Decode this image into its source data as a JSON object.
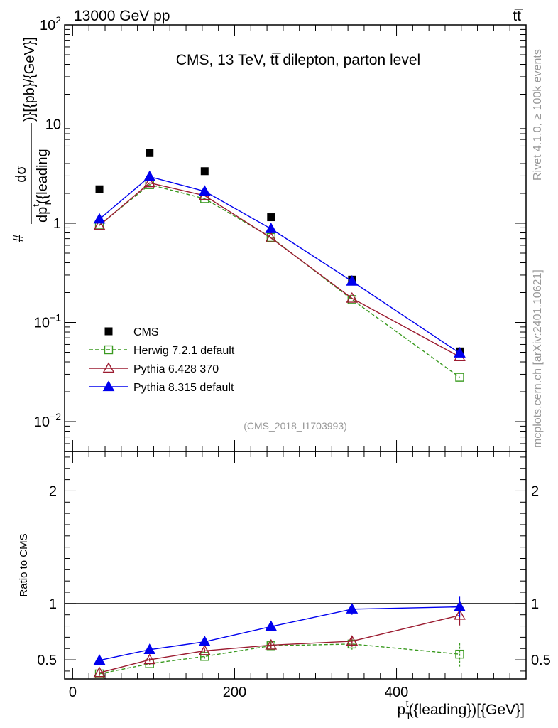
{
  "chart_data": [
    {
      "panel": "main",
      "type": "scatter",
      "yscale": "log",
      "title": "CMS, 13 TeV, tt̅ dilepton, parton level",
      "top_left_label": "13000 GeV pp",
      "top_right_label": "tt̅",
      "ylabel": {
        "hash": "#",
        "numerator": "dσ",
        "denominator": "dp",
        "sub": "T",
        "sup": "t",
        "denominator_rest": "({leading",
        "trailing": ")}[{pb}/{GeV}]"
      },
      "xlim": [
        -10,
        560
      ],
      "ylim": [
        0.005,
        100
      ],
      "yticks": [
        {
          "value": 100,
          "base": "10",
          "exp": "2"
        },
        {
          "value": 10,
          "base": "10",
          "exp": ""
        },
        {
          "value": 1,
          "base": "1",
          "exp": ""
        },
        {
          "value": 0.1,
          "base": "10",
          "exp": "−1"
        },
        {
          "value": 0.01,
          "base": "10",
          "exp": "−2"
        }
      ],
      "x": [
        33,
        95,
        163,
        245,
        345,
        478
      ],
      "series": [
        {
          "name": "CMS",
          "color": "#000000",
          "marker": "square-filled",
          "line": "none",
          "values": [
            2.2,
            5.1,
            3.35,
            1.15,
            0.27,
            0.051
          ]
        },
        {
          "name": "Herwig 7.2.1 default",
          "color": "#3a9a20",
          "marker": "square-open",
          "line": "dashed",
          "values": [
            0.96,
            2.45,
            1.77,
            0.72,
            0.17,
            0.028
          ]
        },
        {
          "name": "Pythia 6.428 370",
          "color": "#9b1b30",
          "marker": "triangle-open",
          "line": "solid",
          "values": [
            0.95,
            2.55,
            1.9,
            0.71,
            0.175,
            0.045
          ]
        },
        {
          "name": "Pythia 8.315 default",
          "color": "#0000ee",
          "marker": "triangle-filled",
          "line": "solid",
          "values": [
            1.1,
            2.95,
            2.1,
            0.88,
            0.26,
            0.049
          ]
        }
      ],
      "watermark": "(CMS_2018_I1703993)"
    },
    {
      "panel": "ratio",
      "type": "scatter",
      "ylabel": "Ratio to CMS",
      "xlabel": {
        "main": "p",
        "sub": "T",
        "sup": "t",
        "rest": "({leading})[{GeV}]"
      },
      "xlim": [
        -10,
        560
      ],
      "ylim": [
        0.33,
        2.35
      ],
      "xticks": [
        0,
        200,
        400
      ],
      "yticks": [
        0.5,
        1,
        2
      ],
      "x": [
        33,
        95,
        163,
        245,
        345,
        478
      ],
      "series": [
        {
          "name": "Herwig 7.2.1 default",
          "color": "#3a9a20",
          "marker": "square-open",
          "line": "dashed",
          "values": [
            0.375,
            0.465,
            0.53,
            0.625,
            0.64,
            0.55
          ],
          "errors": [
            0.02,
            0.015,
            0.02,
            0.025,
            0.05,
            0.11
          ]
        },
        {
          "name": "Pythia 6.428 370",
          "color": "#9b1b30",
          "marker": "triangle-open",
          "line": "solid",
          "values": [
            0.385,
            0.5,
            0.58,
            0.63,
            0.665,
            0.895
          ],
          "errors": [
            0.02,
            0.015,
            0.02,
            0.025,
            0.05,
            0.09
          ]
        },
        {
          "name": "Pythia 8.315 default",
          "color": "#0000ee",
          "marker": "triangle-filled",
          "line": "solid",
          "values": [
            0.495,
            0.59,
            0.66,
            0.795,
            0.95,
            0.97
          ],
          "errors": [
            0.025,
            0.015,
            0.02,
            0.025,
            0.05,
            0.09
          ]
        }
      ]
    }
  ],
  "side_labels": {
    "rivet": "Rivet 4.1.0, ≥ 100k events",
    "mcplots": "mcplots.cern.ch [arXiv:2401.10621]"
  }
}
